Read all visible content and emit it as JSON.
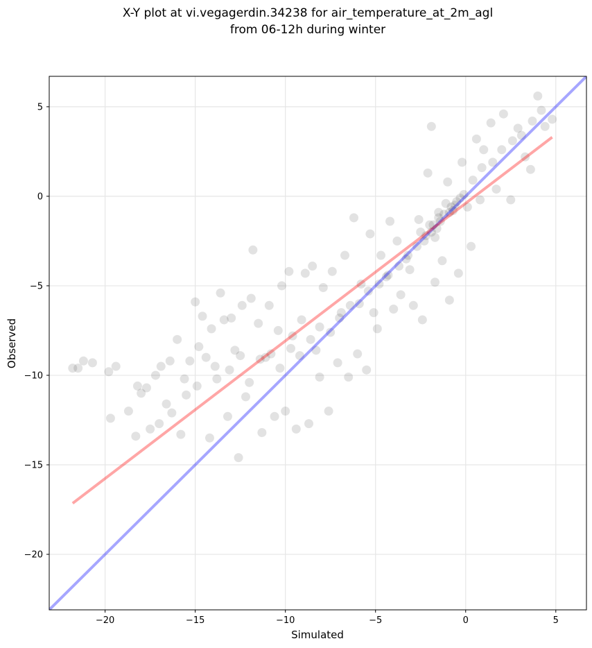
{
  "chart_data": {
    "type": "scatter",
    "title": "X-Y plot at vi.vegagerdin.34238 for air_temperature_at_2m_agl",
    "subtitle": "from 06-12h during winter",
    "xlabel": "Simulated",
    "ylabel": "Observed",
    "xlim": [
      -23.1,
      6.7
    ],
    "ylim": [
      -23.1,
      6.7
    ],
    "xticks": [
      -20,
      -15,
      -10,
      -5,
      0,
      5
    ],
    "yticks": [
      -20,
      -15,
      -10,
      -5,
      0,
      5
    ],
    "xtick_labels": [
      "−20",
      "−15",
      "−10",
      "−5",
      "0",
      "5"
    ],
    "ytick_labels": [
      "−20",
      "−15",
      "−10",
      "−5",
      "0",
      "5"
    ],
    "grid": true,
    "point_color": "#000000",
    "point_alpha": 0.07,
    "lines": [
      {
        "x": [
          -23.1,
          6.7
        ],
        "y": [
          -23.1,
          6.7
        ],
        "color": "#0000ff",
        "alpha": 0.35
      },
      {
        "x": [
          -21.8,
          4.8
        ],
        "y": [
          -17.15,
          3.3
        ],
        "color": "#ff0000",
        "alpha": 0.35
      }
    ],
    "points": [
      [
        -21.8,
        -9.6
      ],
      [
        -21.5,
        -9.6
      ],
      [
        -21.2,
        -9.2
      ],
      [
        -20.7,
        -9.3
      ],
      [
        -19.8,
        -9.8
      ],
      [
        -19.7,
        -12.4
      ],
      [
        -19.4,
        -9.5
      ],
      [
        -18.7,
        -12.0
      ],
      [
        -18.3,
        -13.4
      ],
      [
        -18.2,
        -10.6
      ],
      [
        -18.0,
        -11.0
      ],
      [
        -17.7,
        -10.7
      ],
      [
        -17.5,
        -13.0
      ],
      [
        -17.0,
        -12.7
      ],
      [
        -16.9,
        -9.5
      ],
      [
        -16.6,
        -11.6
      ],
      [
        -16.3,
        -12.1
      ],
      [
        -16.0,
        -8.0
      ],
      [
        -15.8,
        -13.3
      ],
      [
        -15.6,
        -10.2
      ],
      [
        -15.3,
        -9.2
      ],
      [
        -15.0,
        -5.9
      ],
      [
        -14.8,
        -8.4
      ],
      [
        -14.6,
        -6.7
      ],
      [
        -14.2,
        -13.5
      ],
      [
        -14.1,
        -7.4
      ],
      [
        -13.9,
        -9.5
      ],
      [
        -13.6,
        -5.4
      ],
      [
        -13.4,
        -6.9
      ],
      [
        -13.2,
        -12.3
      ],
      [
        -13.0,
        -6.8
      ],
      [
        -12.8,
        -8.6
      ],
      [
        -12.6,
        -14.6
      ],
      [
        -12.4,
        -6.1
      ],
      [
        -12.2,
        -11.2
      ],
      [
        -11.9,
        -5.7
      ],
      [
        -11.8,
        -3.0
      ],
      [
        -11.5,
        -7.1
      ],
      [
        -11.3,
        -13.2
      ],
      [
        -11.1,
        -9.0
      ],
      [
        -10.9,
        -6.1
      ],
      [
        -10.6,
        -12.3
      ],
      [
        -10.4,
        -7.5
      ],
      [
        -10.2,
        -5.0
      ],
      [
        -10.0,
        -12.0
      ],
      [
        -9.8,
        -4.2
      ],
      [
        -9.6,
        -7.8
      ],
      [
        -9.4,
        -13.0
      ],
      [
        -9.1,
        -6.9
      ],
      [
        -8.9,
        -4.3
      ],
      [
        -8.7,
        -12.7
      ],
      [
        -8.5,
        -3.9
      ],
      [
        -8.3,
        -8.6
      ],
      [
        -8.1,
        -10.1
      ],
      [
        -7.9,
        -5.1
      ],
      [
        -7.6,
        -12.0
      ],
      [
        -7.4,
        -4.2
      ],
      [
        -7.1,
        -9.3
      ],
      [
        -6.9,
        -6.5
      ],
      [
        -6.7,
        -3.3
      ],
      [
        -6.5,
        -10.1
      ],
      [
        -6.2,
        -1.2
      ],
      [
        -6.0,
        -8.8
      ],
      [
        -5.8,
        -4.9
      ],
      [
        -5.5,
        -9.7
      ],
      [
        -5.3,
        -2.1
      ],
      [
        -5.1,
        -6.5
      ],
      [
        -4.9,
        -7.4
      ],
      [
        -4.7,
        -3.3
      ],
      [
        -4.4,
        -4.5
      ],
      [
        -4.2,
        -1.4
      ],
      [
        -4.0,
        -6.3
      ],
      [
        -3.8,
        -2.5
      ],
      [
        -3.6,
        -5.5
      ],
      [
        -3.3,
        -3.5
      ],
      [
        -3.1,
        -4.1
      ],
      [
        -2.9,
        -6.1
      ],
      [
        -2.6,
        -1.3
      ],
      [
        -2.4,
        -6.9
      ],
      [
        -2.1,
        1.3
      ],
      [
        -1.9,
        3.9
      ],
      [
        -1.7,
        -4.8
      ],
      [
        -1.5,
        -0.9
      ],
      [
        -1.3,
        -3.6
      ],
      [
        -1.0,
        0.8
      ],
      [
        -0.9,
        -5.8
      ],
      [
        -0.6,
        -0.5
      ],
      [
        -0.4,
        -4.3
      ],
      [
        -0.2,
        1.9
      ],
      [
        0.1,
        -0.6
      ],
      [
        0.3,
        -2.8
      ],
      [
        0.6,
        3.2
      ],
      [
        0.8,
        -0.2
      ],
      [
        1.0,
        2.6
      ],
      [
        1.4,
        4.1
      ],
      [
        1.7,
        0.4
      ],
      [
        2.1,
        4.6
      ],
      [
        2.5,
        -0.2
      ],
      [
        2.9,
        3.8
      ],
      [
        3.3,
        2.2
      ],
      [
        3.6,
        1.5
      ],
      [
        4.0,
        5.6
      ],
      [
        4.4,
        3.9
      ],
      [
        4.8,
        4.3
      ],
      [
        -17.2,
        -10.0
      ],
      [
        -16.4,
        -9.2
      ],
      [
        -15.5,
        -11.1
      ],
      [
        -14.9,
        -10.6
      ],
      [
        -14.4,
        -9.0
      ],
      [
        -13.8,
        -10.2
      ],
      [
        -13.1,
        -9.7
      ],
      [
        -12.5,
        -8.9
      ],
      [
        -12.0,
        -10.4
      ],
      [
        -11.4,
        -9.1
      ],
      [
        -10.8,
        -8.8
      ],
      [
        -10.3,
        -9.6
      ],
      [
        -9.7,
        -8.5
      ],
      [
        -9.2,
        -8.9
      ],
      [
        -8.6,
        -8.0
      ],
      [
        -8.1,
        -7.3
      ],
      [
        -7.5,
        -7.6
      ],
      [
        -7.0,
        -6.8
      ],
      [
        -6.4,
        -6.1
      ],
      [
        -5.9,
        -6.0
      ],
      [
        -5.4,
        -5.3
      ],
      [
        -4.8,
        -4.9
      ],
      [
        -4.3,
        -4.4
      ],
      [
        -3.7,
        -3.9
      ],
      [
        -3.2,
        -3.3
      ],
      [
        -2.7,
        -2.8
      ],
      [
        -2.2,
        -2.2
      ],
      [
        -1.8,
        -1.6
      ],
      [
        -1.4,
        -1.4
      ],
      [
        -0.9,
        -0.9
      ],
      [
        -0.5,
        -0.3
      ],
      [
        -0.1,
        0.1
      ],
      [
        0.4,
        0.9
      ],
      [
        0.9,
        1.6
      ],
      [
        1.5,
        1.9
      ],
      [
        2.0,
        2.6
      ],
      [
        2.6,
        3.1
      ],
      [
        3.1,
        3.4
      ],
      [
        3.7,
        4.2
      ],
      [
        4.2,
        4.8
      ],
      [
        -1.6,
        -1.8
      ],
      [
        -1.2,
        -1.0
      ],
      [
        -0.8,
        -0.6
      ],
      [
        -1.9,
        -2.0
      ],
      [
        -2.3,
        -2.5
      ],
      [
        -1.1,
        -0.4
      ],
      [
        -0.7,
        -0.8
      ],
      [
        -1.5,
        -1.2
      ],
      [
        -2.0,
        -1.6
      ],
      [
        -0.3,
        -0.1
      ],
      [
        -1.7,
        -2.3
      ],
      [
        -2.5,
        -2.0
      ]
    ]
  }
}
